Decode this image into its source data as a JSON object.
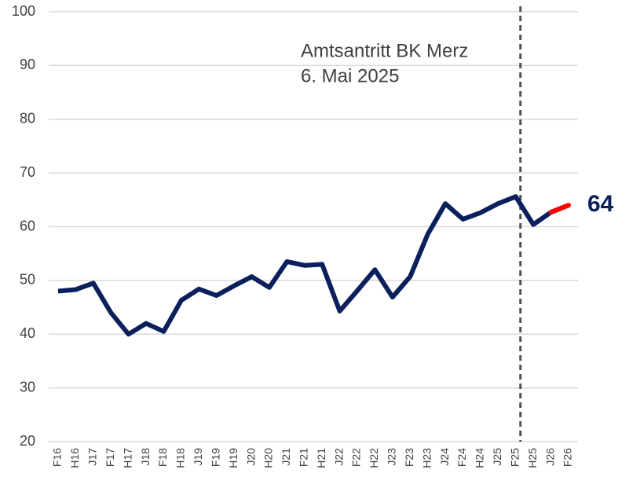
{
  "chart_data": {
    "type": "line",
    "categories": [
      "F16",
      "H16",
      "J17",
      "F17",
      "H17",
      "J18",
      "F18",
      "H18",
      "J19",
      "F19",
      "H19",
      "J20",
      "H20",
      "J21",
      "F21",
      "H21",
      "J22",
      "F22",
      "H22",
      "J23",
      "F23",
      "H23",
      "J24",
      "F24",
      "H24",
      "J25",
      "F25",
      "H25",
      "J26",
      "F26"
    ],
    "series": [
      {
        "color": "#0a1f5c",
        "last_segment_color": "#ff0000",
        "values": [
          48,
          48.3,
          49.5,
          44,
          40,
          42,
          40.5,
          46.3,
          48.4,
          47.2,
          49,
          50.7,
          48.7,
          53.5,
          52.8,
          53,
          44.3,
          48.1,
          52,
          46.9,
          50.7,
          58.6,
          64.3,
          61.4,
          62.6,
          64.3,
          65.6,
          60.4,
          62.7,
          64
        ]
      }
    ],
    "ylim": [
      20,
      100
    ],
    "yticks": [
      20,
      30,
      40,
      50,
      60,
      70,
      80,
      90,
      100
    ],
    "grid": true,
    "annotation": {
      "category": "F25",
      "lines": [
        "Amtsantritt BK Merz",
        "6. Mai 2025"
      ]
    }
  }
}
